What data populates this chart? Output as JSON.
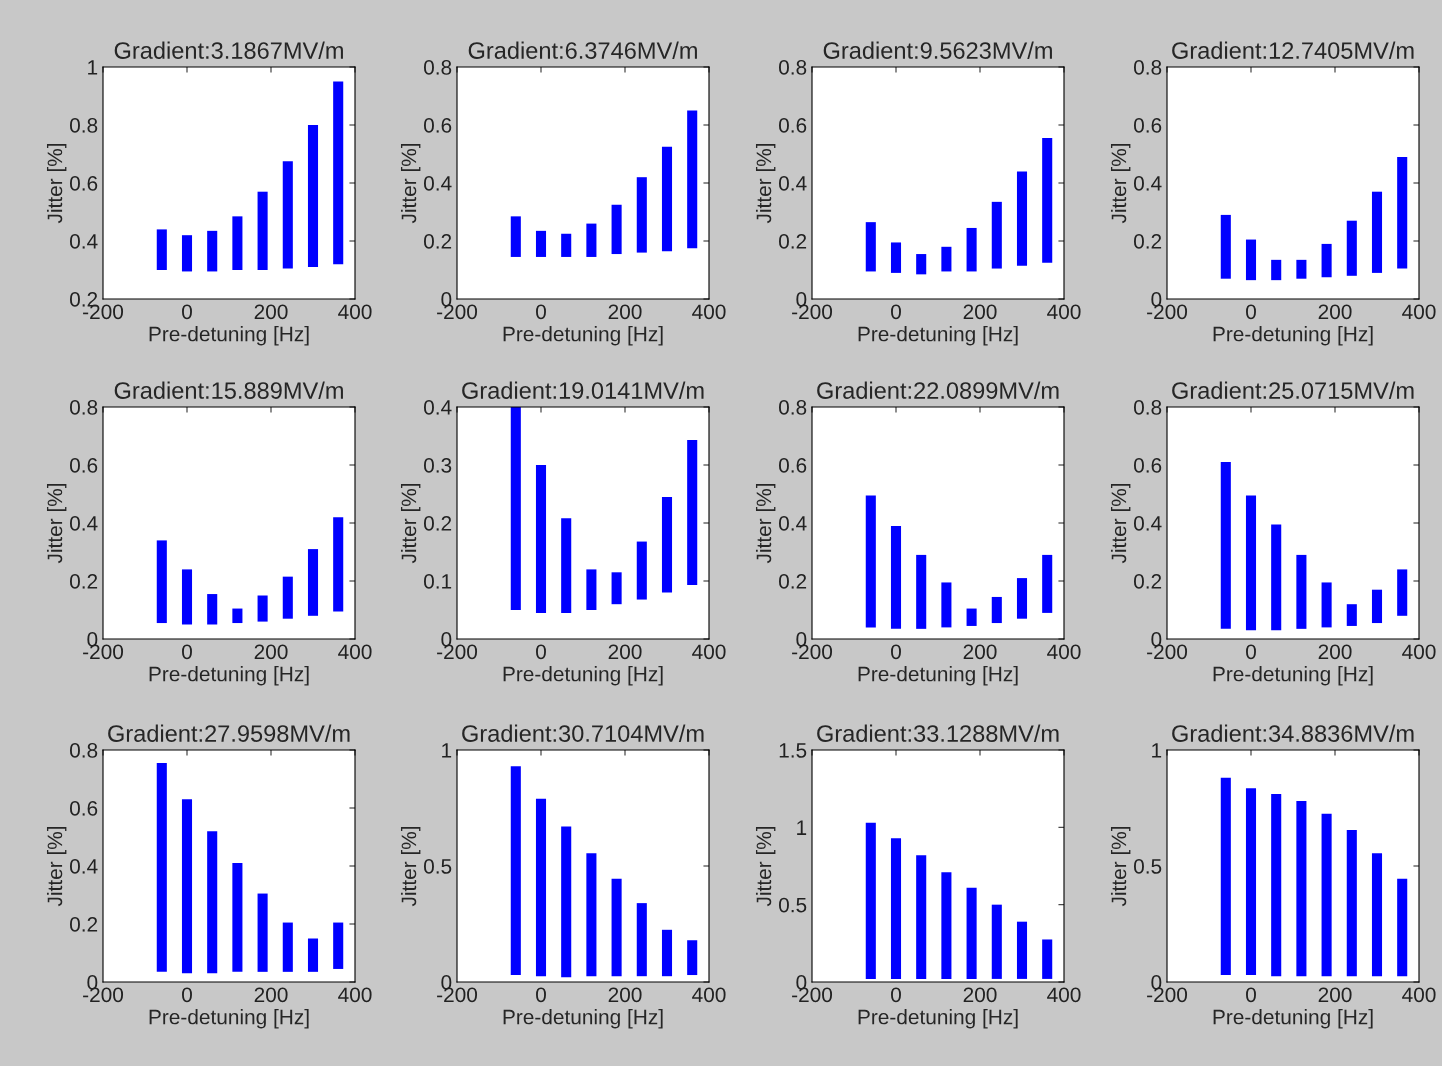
{
  "chart_data": [
    {
      "type": "bar",
      "title": "Gradient:3.1867MV/m",
      "xlabel": "Pre-detuning [Hz]",
      "ylabel": "Jitter [%]",
      "color": "#0000ff",
      "x": [
        -60,
        0,
        60,
        120,
        180,
        240,
        300,
        360
      ],
      "base": [
        0.3,
        0.295,
        0.295,
        0.3,
        0.3,
        0.305,
        0.31,
        0.32
      ],
      "values": [
        0.14,
        0.125,
        0.14,
        0.185,
        0.27,
        0.37,
        0.49,
        0.63
      ],
      "xlim": [
        -200,
        400
      ],
      "xticks": [
        -200,
        0,
        200,
        400
      ],
      "ylim": [
        0.2,
        1
      ],
      "yticks": [
        0.2,
        0.4,
        0.6,
        0.8,
        1
      ]
    },
    {
      "type": "bar",
      "title": "Gradient:6.3746MV/m",
      "xlabel": "Pre-detuning [Hz]",
      "ylabel": "Jitter [%]",
      "color": "#0000ff",
      "x": [
        -60,
        0,
        60,
        120,
        180,
        240,
        300,
        360
      ],
      "base": [
        0.145,
        0.145,
        0.145,
        0.145,
        0.155,
        0.16,
        0.165,
        0.175
      ],
      "values": [
        0.14,
        0.09,
        0.08,
        0.115,
        0.17,
        0.26,
        0.36,
        0.475
      ],
      "xlim": [
        -200,
        400
      ],
      "xticks": [
        -200,
        0,
        200,
        400
      ],
      "ylim": [
        0,
        0.8
      ],
      "yticks": [
        0,
        0.2,
        0.4,
        0.6,
        0.8
      ]
    },
    {
      "type": "bar",
      "title": "Gradient:9.5623MV/m",
      "xlabel": "Pre-detuning [Hz]",
      "ylabel": "Jitter [%]",
      "color": "#0000ff",
      "x": [
        -60,
        0,
        60,
        120,
        180,
        240,
        300,
        360
      ],
      "base": [
        0.095,
        0.09,
        0.085,
        0.095,
        0.095,
        0.105,
        0.115,
        0.125
      ],
      "values": [
        0.17,
        0.105,
        0.07,
        0.085,
        0.15,
        0.23,
        0.325,
        0.43
      ],
      "xlim": [
        -200,
        400
      ],
      "xticks": [
        -200,
        0,
        200,
        400
      ],
      "ylim": [
        0,
        0.8
      ],
      "yticks": [
        0,
        0.2,
        0.4,
        0.6,
        0.8
      ]
    },
    {
      "type": "bar",
      "title": "Gradient:12.7405MV/m",
      "xlabel": "Pre-detuning [Hz]",
      "ylabel": "Jitter [%]",
      "color": "#0000ff",
      "x": [
        -60,
        0,
        60,
        120,
        180,
        240,
        300,
        360
      ],
      "base": [
        0.07,
        0.065,
        0.065,
        0.07,
        0.075,
        0.08,
        0.09,
        0.105
      ],
      "values": [
        0.22,
        0.14,
        0.07,
        0.065,
        0.115,
        0.19,
        0.28,
        0.385
      ],
      "xlim": [
        -200,
        400
      ],
      "xticks": [
        -200,
        0,
        200,
        400
      ],
      "ylim": [
        0,
        0.8
      ],
      "yticks": [
        0,
        0.2,
        0.4,
        0.6,
        0.8
      ]
    },
    {
      "type": "bar",
      "title": "Gradient:15.889MV/m",
      "xlabel": "Pre-detuning [Hz]",
      "ylabel": "Jitter [%]",
      "color": "#0000ff",
      "x": [
        -60,
        0,
        60,
        120,
        180,
        240,
        300,
        360
      ],
      "base": [
        0.055,
        0.05,
        0.05,
        0.055,
        0.06,
        0.07,
        0.08,
        0.095
      ],
      "values": [
        0.285,
        0.19,
        0.105,
        0.05,
        0.09,
        0.145,
        0.23,
        0.325
      ],
      "xlim": [
        -200,
        400
      ],
      "xticks": [
        -200,
        0,
        200,
        400
      ],
      "ylim": [
        0,
        0.8
      ],
      "yticks": [
        0,
        0.2,
        0.4,
        0.6,
        0.8
      ]
    },
    {
      "type": "bar",
      "title": "Gradient:19.0141MV/m",
      "xlabel": "Pre-detuning [Hz]",
      "ylabel": "Jitter [%]",
      "color": "#0000ff",
      "x": [
        -60,
        0,
        60,
        120,
        180,
        240,
        300,
        360
      ],
      "base": [
        0.05,
        0.045,
        0.045,
        0.05,
        0.06,
        0.068,
        0.08,
        0.093
      ],
      "values": [
        0.35,
        0.255,
        0.163,
        0.07,
        0.055,
        0.1,
        0.165,
        0.25
      ],
      "xlim": [
        -200,
        400
      ],
      "xticks": [
        -200,
        0,
        200,
        400
      ],
      "ylim": [
        0,
        0.4
      ],
      "yticks": [
        0,
        0.1,
        0.2,
        0.3,
        0.4
      ]
    },
    {
      "type": "bar",
      "title": "Gradient:22.0899MV/m",
      "xlabel": "Pre-detuning [Hz]",
      "ylabel": "Jitter [%]",
      "color": "#0000ff",
      "x": [
        -60,
        0,
        60,
        120,
        180,
        240,
        300,
        360
      ],
      "base": [
        0.04,
        0.035,
        0.035,
        0.04,
        0.045,
        0.055,
        0.07,
        0.09
      ],
      "values": [
        0.455,
        0.355,
        0.255,
        0.155,
        0.06,
        0.09,
        0.14,
        0.2
      ],
      "xlim": [
        -200,
        400
      ],
      "xticks": [
        -200,
        0,
        200,
        400
      ],
      "ylim": [
        0,
        0.8
      ],
      "yticks": [
        0,
        0.2,
        0.4,
        0.6,
        0.8
      ]
    },
    {
      "type": "bar",
      "title": "Gradient:25.0715MV/m",
      "xlabel": "Pre-detuning [Hz]",
      "ylabel": "Jitter [%]",
      "color": "#0000ff",
      "x": [
        -60,
        0,
        60,
        120,
        180,
        240,
        300,
        360
      ],
      "base": [
        0.035,
        0.03,
        0.03,
        0.035,
        0.04,
        0.045,
        0.055,
        0.08
      ],
      "values": [
        0.575,
        0.465,
        0.365,
        0.255,
        0.155,
        0.075,
        0.115,
        0.16
      ],
      "xlim": [
        -200,
        400
      ],
      "xticks": [
        -200,
        0,
        200,
        400
      ],
      "ylim": [
        0,
        0.8
      ],
      "yticks": [
        0,
        0.2,
        0.4,
        0.6,
        0.8
      ]
    },
    {
      "type": "bar",
      "title": "Gradient:27.9598MV/m",
      "xlabel": "Pre-detuning [Hz]",
      "ylabel": "Jitter [%]",
      "color": "#0000ff",
      "x": [
        -60,
        0,
        60,
        120,
        180,
        240,
        300,
        360
      ],
      "base": [
        0.035,
        0.03,
        0.03,
        0.035,
        0.035,
        0.035,
        0.035,
        0.045
      ],
      "values": [
        0.72,
        0.6,
        0.49,
        0.375,
        0.27,
        0.17,
        0.115,
        0.16
      ],
      "xlim": [
        -200,
        400
      ],
      "xticks": [
        -200,
        0,
        200,
        400
      ],
      "ylim": [
        0,
        0.8
      ],
      "yticks": [
        0,
        0.2,
        0.4,
        0.6,
        0.8
      ]
    },
    {
      "type": "bar",
      "title": "Gradient:30.7104MV/m",
      "xlabel": "Pre-detuning [Hz]",
      "ylabel": "Jitter [%]",
      "color": "#0000ff",
      "x": [
        -60,
        0,
        60,
        120,
        180,
        240,
        300,
        360
      ],
      "base": [
        0.03,
        0.025,
        0.02,
        0.025,
        0.025,
        0.025,
        0.025,
        0.03
      ],
      "values": [
        0.9,
        0.765,
        0.65,
        0.53,
        0.42,
        0.315,
        0.2,
        0.15
      ],
      "xlim": [
        -200,
        400
      ],
      "xticks": [
        -200,
        0,
        200,
        400
      ],
      "ylim": [
        0,
        1
      ],
      "yticks": [
        0,
        0.5,
        1
      ]
    },
    {
      "type": "bar",
      "title": "Gradient:33.1288MV/m",
      "xlabel": "Pre-detuning [Hz]",
      "ylabel": "Jitter [%]",
      "color": "#0000ff",
      "x": [
        -60,
        0,
        60,
        120,
        180,
        240,
        300,
        360
      ],
      "base": [
        0.02,
        0.02,
        0.02,
        0.02,
        0.02,
        0.02,
        0.02,
        0.02
      ],
      "values": [
        1.01,
        0.91,
        0.8,
        0.69,
        0.59,
        0.48,
        0.37,
        0.255
      ],
      "xlim": [
        -200,
        400
      ],
      "xticks": [
        -200,
        0,
        200,
        400
      ],
      "ylim": [
        0,
        1.5
      ],
      "yticks": [
        0,
        0.5,
        1,
        1.5
      ]
    },
    {
      "type": "bar",
      "title": "Gradient:34.8836MV/m",
      "xlabel": "Pre-detuning [Hz]",
      "ylabel": "Jitter [%]",
      "color": "#0000ff",
      "x": [
        -60,
        0,
        60,
        120,
        180,
        240,
        300,
        360
      ],
      "base": [
        0.03,
        0.03,
        0.025,
        0.025,
        0.025,
        0.025,
        0.025,
        0.025
      ],
      "values": [
        0.85,
        0.805,
        0.785,
        0.755,
        0.7,
        0.63,
        0.53,
        0.42
      ],
      "xlim": [
        -200,
        400
      ],
      "xticks": [
        -200,
        0,
        200,
        400
      ],
      "ylim": [
        0,
        1
      ],
      "yticks": [
        0,
        0.5,
        1
      ]
    }
  ]
}
